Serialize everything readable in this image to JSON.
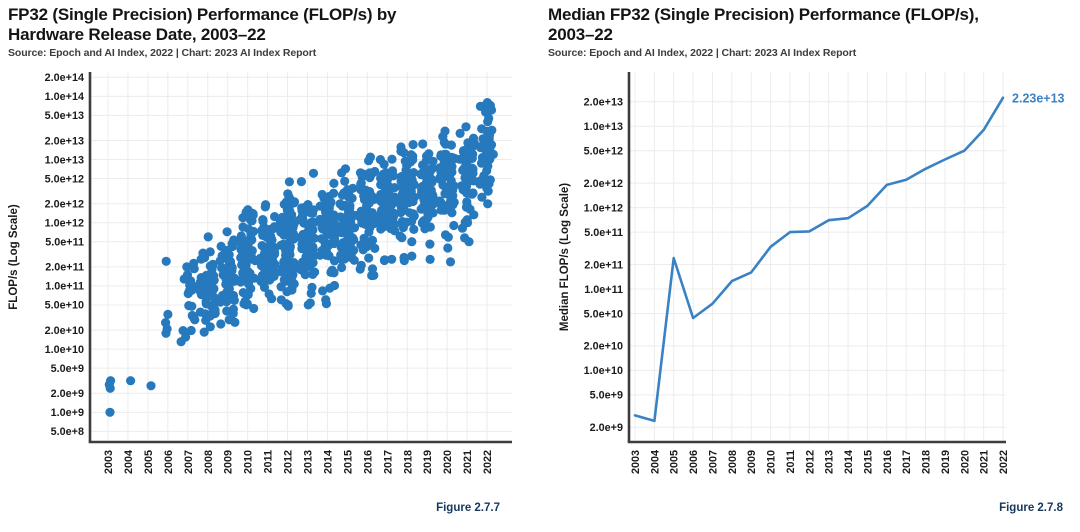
{
  "palette": {
    "scatter_marker_color": "#2779BD",
    "line_color": "#3A82C4",
    "annotation_color": "#3A82C4",
    "figure_label_color": "#17375E",
    "grid_color": "#ECECEC",
    "axis_color": "#3D3D3D",
    "tick_text_color": "#1B1B1B",
    "title_color": "#141414",
    "source_text_color": "#3D3D3D"
  },
  "chart_data": [
    {
      "type": "scatter",
      "title": "FP32 (Single Precision) Performance (FLOP/s) by Hardware Release Date, 2003–22",
      "title_lines": [
        "FP32 (Single Precision) Performance (FLOP/s) by",
        "Hardware Release Date, 2003–22"
      ],
      "source": "Source: Epoch and AI Index, 2022 | Chart: 2023 AI Index Report",
      "figure_label": "Figure 2.7.7",
      "xlabel": "",
      "ylabel": "FLOP/s (Log Scale)",
      "grid": true,
      "legend": "none",
      "x_categories": [
        "2003",
        "2004",
        "2005",
        "2006",
        "2007",
        "2008",
        "2009",
        "2010",
        "2011",
        "2012",
        "2013",
        "2014",
        "2015",
        "2016",
        "2017",
        "2018",
        "2019",
        "2020",
        "2021",
        "2022"
      ],
      "y_tick_labels": [
        "2.0e+14",
        "1.0e+14",
        "5.0e+13",
        "2.0e+13",
        "1.0e+13",
        "5.0e+12",
        "2.0e+12",
        "1.0e+12",
        "5.0e+11",
        "2.0e+11",
        "1.0e+11",
        "5.0e+10",
        "2.0e+10",
        "1.0e+10",
        "5.0e+9",
        "2.0e+9",
        "1.0e+9",
        "5.0e+8"
      ],
      "y_tick_log10": [
        14.301,
        14.0,
        13.699,
        13.301,
        13.0,
        12.699,
        12.301,
        12.0,
        11.699,
        11.301,
        11.0,
        10.699,
        10.301,
        10.0,
        9.699,
        9.301,
        9.0,
        8.699
      ],
      "ylim_log10": [
        8.62,
        14.42
      ],
      "points_by_year": [
        {
          "year": "2003",
          "points": [
            9.0,
            9.38,
            9.44,
            9.5
          ]
        },
        {
          "year": "2004",
          "points": [
            9.5
          ]
        },
        {
          "year": "2005",
          "points": [
            9.42
          ]
        },
        {
          "year": "2006",
          "points": [
            10.25,
            10.32,
            10.42,
            10.55,
            11.39
          ]
        },
        {
          "year": "2007",
          "n": 20,
          "center": 10.78,
          "sd": 0.34,
          "min": 10.08,
          "max": 11.5
        },
        {
          "year": "2008",
          "n": 48,
          "center": 10.95,
          "sd": 0.4,
          "min": 10.05,
          "max": 11.9
        },
        {
          "year": "2009",
          "n": 52,
          "center": 11.15,
          "sd": 0.4,
          "min": 10.3,
          "max": 12.1
        },
        {
          "year": "2010",
          "n": 58,
          "center": 11.35,
          "sd": 0.42,
          "min": 10.5,
          "max": 12.3,
          "points": [
            10.72,
            10.7
          ]
        },
        {
          "year": "2011",
          "n": 70,
          "center": 11.55,
          "sd": 0.42,
          "min": 10.75,
          "max": 12.5
        },
        {
          "year": "2012",
          "n": 72,
          "center": 11.65,
          "sd": 0.44,
          "min": 10.7,
          "max": 12.65,
          "points": [
            10.7,
            10.72,
            10.68
          ]
        },
        {
          "year": "2013",
          "n": 72,
          "center": 11.78,
          "sd": 0.44,
          "min": 10.75,
          "max": 12.9,
          "points": [
            10.7,
            10.73
          ]
        },
        {
          "year": "2014",
          "n": 72,
          "center": 11.88,
          "sd": 0.44,
          "min": 10.75,
          "max": 12.95,
          "points": [
            10.72
          ]
        },
        {
          "year": "2015",
          "n": 64,
          "center": 12.0,
          "sd": 0.42,
          "min": 11.05,
          "max": 12.95
        },
        {
          "year": "2016",
          "n": 64,
          "center": 12.15,
          "sd": 0.42,
          "min": 11.05,
          "max": 13.05
        },
        {
          "year": "2017",
          "n": 62,
          "center": 12.3,
          "sd": 0.4,
          "min": 11.35,
          "max": 13.2
        },
        {
          "year": "2018",
          "n": 62,
          "center": 12.42,
          "sd": 0.4,
          "min": 11.35,
          "max": 13.25,
          "points": [
            11.4,
            11.45
          ]
        },
        {
          "year": "2019",
          "n": 58,
          "center": 12.52,
          "sd": 0.38,
          "min": 11.45,
          "max": 13.3,
          "points": [
            11.42
          ]
        },
        {
          "year": "2020",
          "n": 58,
          "center": 12.62,
          "sd": 0.4,
          "min": 11.45,
          "max": 13.45,
          "points": [
            11.38,
            11.6
          ]
        },
        {
          "year": "2021",
          "n": 58,
          "center": 12.82,
          "sd": 0.42,
          "min": 11.65,
          "max": 13.7,
          "points": [
            11.7,
            12.0
          ]
        },
        {
          "year": "2022",
          "n": 38,
          "center": 13.1,
          "sd": 0.45,
          "min": 12.25,
          "max": 13.95,
          "points": [
            12.3,
            12.5,
            13.9,
            13.85,
            13.75,
            13.6
          ]
        }
      ]
    },
    {
      "type": "line",
      "title": "Median FP32 (Single Precision) Performance (FLOP/s), 2003–22",
      "title_lines": [
        "Median FP32 (Single Precision) Performance (FLOP/s),",
        "2003–22"
      ],
      "source": "Source: Epoch and AI Index, 2022 | Chart: 2023 AI Index Report",
      "figure_label": "Figure 2.7.8",
      "xlabel": "",
      "ylabel": "Median FLOP/s (Log Scale)",
      "grid": true,
      "legend": "none",
      "categories": [
        "2003",
        "2004",
        "2005",
        "2006",
        "2007",
        "2008",
        "2009",
        "2010",
        "2011",
        "2012",
        "2013",
        "2014",
        "2015",
        "2016",
        "2017",
        "2018",
        "2019",
        "2020",
        "2021",
        "2022"
      ],
      "values": [
        2800000000.0,
        2400000000.0,
        240000000000.0,
        44000000000.0,
        66000000000.0,
        125000000000.0,
        160000000000.0,
        330000000000.0,
        500000000000.0,
        510000000000.0,
        700000000000.0,
        740000000000.0,
        1050000000000.0,
        1900000000000.0,
        2200000000000.0,
        3000000000000.0,
        3900000000000.0,
        5000000000000.0,
        9000000000000.0,
        22300000000000.0
      ],
      "end_annotation": "2.23e+13",
      "y_tick_labels": [
        "2.0e+13",
        "1.0e+13",
        "5.0e+12",
        "2.0e+12",
        "1.0e+12",
        "5.0e+11",
        "2.0e+11",
        "1.0e+11",
        "5.0e+10",
        "2.0e+10",
        "1.0e+10",
        "5.0e+9",
        "2.0e+9"
      ],
      "y_tick_log10": [
        13.301,
        13.0,
        12.699,
        12.301,
        12.0,
        11.699,
        11.301,
        11.0,
        10.699,
        10.301,
        10.0,
        9.699,
        9.301
      ],
      "ylim_log10": [
        9.12,
        13.64
      ]
    }
  ]
}
